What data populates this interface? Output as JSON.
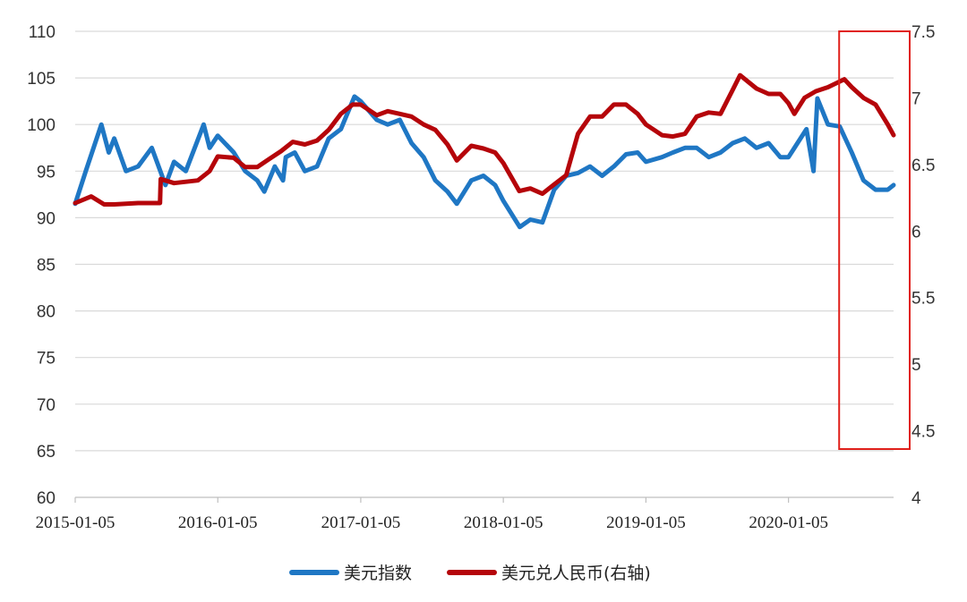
{
  "chart_data": {
    "type": "line",
    "title": "",
    "xlabel": "",
    "ylabel": "",
    "x_ticks": [
      "2015-01-05",
      "2016-01-05",
      "2017-01-05",
      "2018-01-05",
      "2019-01-05",
      "2020-01-05"
    ],
    "y_left": {
      "ylim": [
        60,
        110
      ],
      "ticks": [
        60,
        65,
        70,
        75,
        80,
        85,
        90,
        95,
        100,
        105,
        110
      ]
    },
    "y_right": {
      "ylim": [
        4,
        7.5
      ],
      "ticks": [
        "4",
        "4.5",
        "5",
        "5.5",
        "6",
        "6.5",
        "7",
        "7.5"
      ]
    },
    "grid": true,
    "legend_position": "bottom",
    "highlight_box": {
      "x_start": "2020-06-01",
      "x_end": "2020-09-30",
      "color": "#e0201b"
    },
    "series": [
      {
        "name": "美元指数",
        "axis": "left",
        "color": "#1f77c4",
        "x": [
          "2015-01-05",
          "2015-02-01",
          "2015-03-13",
          "2015-04-01",
          "2015-04-15",
          "2015-05-15",
          "2015-06-15",
          "2015-07-20",
          "2015-08-24",
          "2015-09-15",
          "2015-10-15",
          "2015-11-30",
          "2015-12-15",
          "2016-01-05",
          "2016-02-15",
          "2016-03-15",
          "2016-04-15",
          "2016-05-03",
          "2016-05-30",
          "2016-06-20",
          "2016-06-27",
          "2016-07-20",
          "2016-08-15",
          "2016-09-15",
          "2016-10-15",
          "2016-11-15",
          "2016-12-20",
          "2017-01-05",
          "2017-02-15",
          "2017-03-15",
          "2017-04-15",
          "2017-05-15",
          "2017-06-15",
          "2017-07-15",
          "2017-08-15",
          "2017-09-08",
          "2017-10-15",
          "2017-11-15",
          "2017-12-15",
          "2018-01-05",
          "2018-02-16",
          "2018-03-15",
          "2018-04-15",
          "2018-05-15",
          "2018-06-15",
          "2018-07-15",
          "2018-08-15",
          "2018-09-15",
          "2018-10-15",
          "2018-11-15",
          "2018-12-15",
          "2019-01-05",
          "2019-02-15",
          "2019-03-15",
          "2019-04-15",
          "2019-05-15",
          "2019-06-15",
          "2019-07-15",
          "2019-08-15",
          "2019-09-15",
          "2019-10-15",
          "2019-11-15",
          "2019-12-15",
          "2020-01-05",
          "2020-02-20",
          "2020-03-09",
          "2020-03-19",
          "2020-04-15",
          "2020-05-15",
          "2020-06-15",
          "2020-07-15",
          "2020-08-15",
          "2020-09-15",
          "2020-09-30"
        ],
        "values": [
          91.5,
          95.0,
          100.0,
          97.0,
          98.5,
          95.0,
          95.5,
          97.5,
          93.5,
          96.0,
          95.0,
          100.0,
          97.5,
          98.8,
          97.0,
          95.0,
          94.0,
          92.8,
          95.5,
          94.0,
          96.5,
          97.0,
          95.0,
          95.5,
          98.5,
          99.5,
          103.0,
          102.5,
          100.5,
          100.0,
          100.5,
          98.0,
          96.5,
          94.0,
          92.8,
          91.5,
          94.0,
          94.5,
          93.5,
          91.8,
          89.0,
          89.8,
          89.5,
          93.0,
          94.5,
          94.8,
          95.5,
          94.5,
          95.5,
          96.8,
          97.0,
          96.0,
          96.5,
          97.0,
          97.5,
          97.5,
          96.5,
          97.0,
          98.0,
          98.5,
          97.5,
          98.0,
          96.5,
          96.5,
          99.5,
          95.0,
          102.8,
          100.0,
          99.8,
          97.0,
          94.0,
          93.0,
          93.0,
          93.5
        ]
      },
      {
        "name": "美元兑人民币(右轴)",
        "axis": "right",
        "color": "#b5050a",
        "x": [
          "2015-01-05",
          "2015-02-15",
          "2015-03-20",
          "2015-04-15",
          "2015-06-15",
          "2015-08-10",
          "2015-08-12",
          "2015-09-15",
          "2015-11-15",
          "2015-12-15",
          "2016-01-05",
          "2016-02-15",
          "2016-03-15",
          "2016-04-15",
          "2016-05-15",
          "2016-06-15",
          "2016-07-15",
          "2016-08-15",
          "2016-09-15",
          "2016-10-15",
          "2016-11-15",
          "2016-12-15",
          "2017-01-05",
          "2017-02-15",
          "2017-03-15",
          "2017-04-15",
          "2017-05-15",
          "2017-06-15",
          "2017-07-15",
          "2017-08-15",
          "2017-09-08",
          "2017-10-15",
          "2017-11-15",
          "2017-12-15",
          "2018-01-05",
          "2018-02-15",
          "2018-03-15",
          "2018-04-15",
          "2018-05-15",
          "2018-06-15",
          "2018-07-15",
          "2018-08-15",
          "2018-09-15",
          "2018-10-15",
          "2018-11-15",
          "2018-12-15",
          "2019-01-05",
          "2019-02-15",
          "2019-03-15",
          "2019-04-15",
          "2019-05-15",
          "2019-06-15",
          "2019-07-15",
          "2019-08-15",
          "2019-09-03",
          "2019-10-15",
          "2019-11-15",
          "2019-12-15",
          "2020-01-05",
          "2020-01-20",
          "2020-02-15",
          "2020-03-15",
          "2020-04-15",
          "2020-05-27",
          "2020-06-15",
          "2020-07-15",
          "2020-08-15",
          "2020-09-15",
          "2020-09-30"
        ],
        "values": [
          6.21,
          6.26,
          6.2,
          6.2,
          6.21,
          6.21,
          6.39,
          6.36,
          6.38,
          6.45,
          6.56,
          6.55,
          6.48,
          6.48,
          6.54,
          6.6,
          6.67,
          6.65,
          6.68,
          6.76,
          6.88,
          6.95,
          6.95,
          6.87,
          6.9,
          6.88,
          6.86,
          6.8,
          6.76,
          6.65,
          6.53,
          6.64,
          6.62,
          6.59,
          6.51,
          6.3,
          6.32,
          6.28,
          6.35,
          6.42,
          6.73,
          6.86,
          6.86,
          6.95,
          6.95,
          6.88,
          6.8,
          6.72,
          6.71,
          6.73,
          6.86,
          6.89,
          6.88,
          7.06,
          7.17,
          7.07,
          7.03,
          7.03,
          6.96,
          6.88,
          7.0,
          7.05,
          7.08,
          7.14,
          7.08,
          7.0,
          6.95,
          6.8,
          6.72
        ]
      }
    ]
  }
}
